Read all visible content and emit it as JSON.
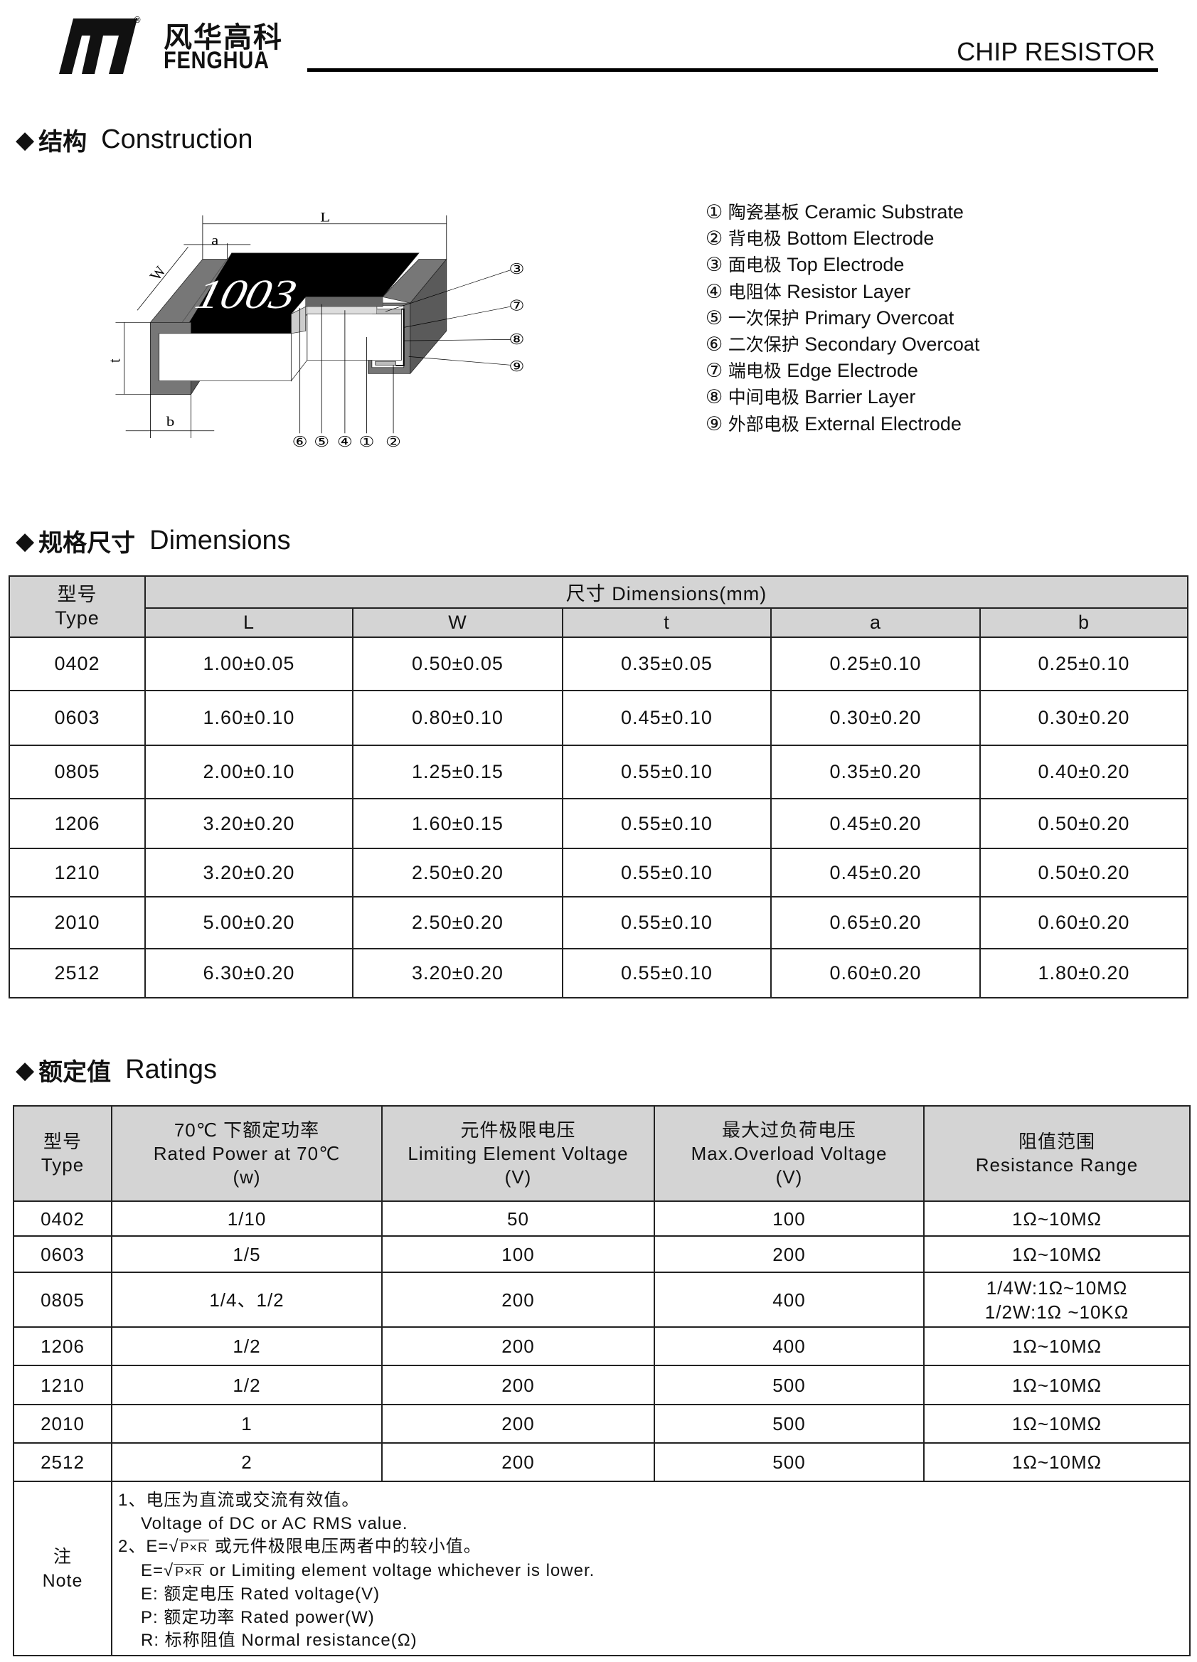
{
  "header": {
    "logo_cn": "风华高科",
    "logo_en": "FENGHUA",
    "logo_mark": "registered",
    "title": "CHIP RESISTOR"
  },
  "construction": {
    "heading_cn": "结构",
    "heading_en": "Construction",
    "diagram": {
      "marking": "1003",
      "dim_labels": {
        "L": "L",
        "a": "a",
        "W": "W",
        "t": "t",
        "b": "b"
      },
      "callouts_right": [
        "③",
        "⑦",
        "⑧",
        "⑨"
      ],
      "callouts_bottom": [
        "⑥",
        "⑤",
        "④",
        "①",
        "②"
      ]
    },
    "legend": [
      {
        "num": "①",
        "cn": "陶瓷基板",
        "en": "Ceramic Substrate"
      },
      {
        "num": "②",
        "cn": "背电极",
        "en": "Bottom Electrode"
      },
      {
        "num": "③",
        "cn": "面电极",
        "en": "Top Electrode"
      },
      {
        "num": "④",
        "cn": "电阻体",
        "en": "Resistor Layer"
      },
      {
        "num": "⑤",
        "cn": "一次保护",
        "en": "Primary Overcoat"
      },
      {
        "num": "⑥",
        "cn": "二次保护",
        "en": "Secondary Overcoat"
      },
      {
        "num": "⑦",
        "cn": "端电极",
        "en": "Edge Electrode"
      },
      {
        "num": "⑧",
        "cn": "中间电极",
        "en": "Barrier Layer"
      },
      {
        "num": "⑨",
        "cn": "外部电极",
        "en": "External Electrode"
      }
    ]
  },
  "dimensions": {
    "heading_cn": "规格尺寸",
    "heading_en": "Dimensions",
    "type_header_cn": "型号",
    "type_header_en": "Type",
    "group_header": "尺寸  Dimensions(mm)",
    "columns": [
      "L",
      "W",
      "t",
      "a",
      "b"
    ],
    "rows": [
      [
        "0402",
        "1.00±0.05",
        "0.50±0.05",
        "0.35±0.05",
        "0.25±0.10",
        "0.25±0.10"
      ],
      [
        "0603",
        "1.60±0.10",
        "0.80±0.10",
        "0.45±0.10",
        "0.30±0.20",
        "0.30±0.20"
      ],
      [
        "0805",
        "2.00±0.10",
        "1.25±0.15",
        "0.55±0.10",
        "0.35±0.20",
        "0.40±0.20"
      ],
      [
        "1206",
        "3.20±0.20",
        "1.60±0.15",
        "0.55±0.10",
        "0.45±0.20",
        "0.50±0.20"
      ],
      [
        "1210",
        "3.20±0.20",
        "2.50±0.20",
        "0.55±0.10",
        "0.45±0.20",
        "0.50±0.20"
      ],
      [
        "2010",
        "5.00±0.20",
        "2.50±0.20",
        "0.55±0.10",
        "0.65±0.20",
        "0.60±0.20"
      ],
      [
        "2512",
        "6.30±0.20",
        "3.20±0.20",
        "0.55±0.10",
        "0.60±0.20",
        "1.80±0.20"
      ]
    ]
  },
  "ratings": {
    "heading_cn": "额定值",
    "heading_en": "Ratings",
    "headers": [
      {
        "cn": "型号",
        "en": "Type",
        "unit": ""
      },
      {
        "cn": "70℃ 下额定功率",
        "en": "Rated Power  at 70℃",
        "unit": "(w)"
      },
      {
        "cn": "元件极限电压",
        "en": "Limiting Element Voltage",
        "unit": "(V)"
      },
      {
        "cn": "最大过负荷电压",
        "en": "Max.Overload Voltage",
        "unit": "(V)"
      },
      {
        "cn": "阻值范围",
        "en": "Resistance Range",
        "unit": ""
      }
    ],
    "rows": [
      [
        "0402",
        "1/10",
        "50",
        "100",
        "1Ω~10MΩ"
      ],
      [
        "0603",
        "1/5",
        "100",
        "200",
        "1Ω~10MΩ"
      ],
      [
        "0805",
        "1/4、1/2",
        "200",
        "400",
        "1/4W:1Ω~10MΩ\n1/2W:1Ω ~10KΩ"
      ],
      [
        "1206",
        "1/2",
        "200",
        "400",
        "1Ω~10MΩ"
      ],
      [
        "1210",
        "1/2",
        "200",
        "500",
        "1Ω~10MΩ"
      ],
      [
        "2010",
        "1",
        "200",
        "500",
        "1Ω~10MΩ"
      ],
      [
        "2512",
        "2",
        "200",
        "500",
        "1Ω~10MΩ"
      ]
    ],
    "note": {
      "label_cn": "注",
      "label_en": "Note",
      "line1_cn": "1、电压为直流或交流有效值。",
      "line1_en": "Voltage of DC or AC RMS value.",
      "line2_prefix": "2、E=",
      "sqrt_expr": "P×R",
      "line2_cn": " 或元件极限电压两者中的较小值。",
      "line3_prefix": "E=",
      "line3_en": "  or Limiting element voltage whichever is lower.",
      "defs": [
        "E: 额定电压 Rated voltage(V)",
        "P: 额定功率 Rated power(W)",
        "R: 标称阻值  Normal resistance(Ω)"
      ]
    }
  }
}
